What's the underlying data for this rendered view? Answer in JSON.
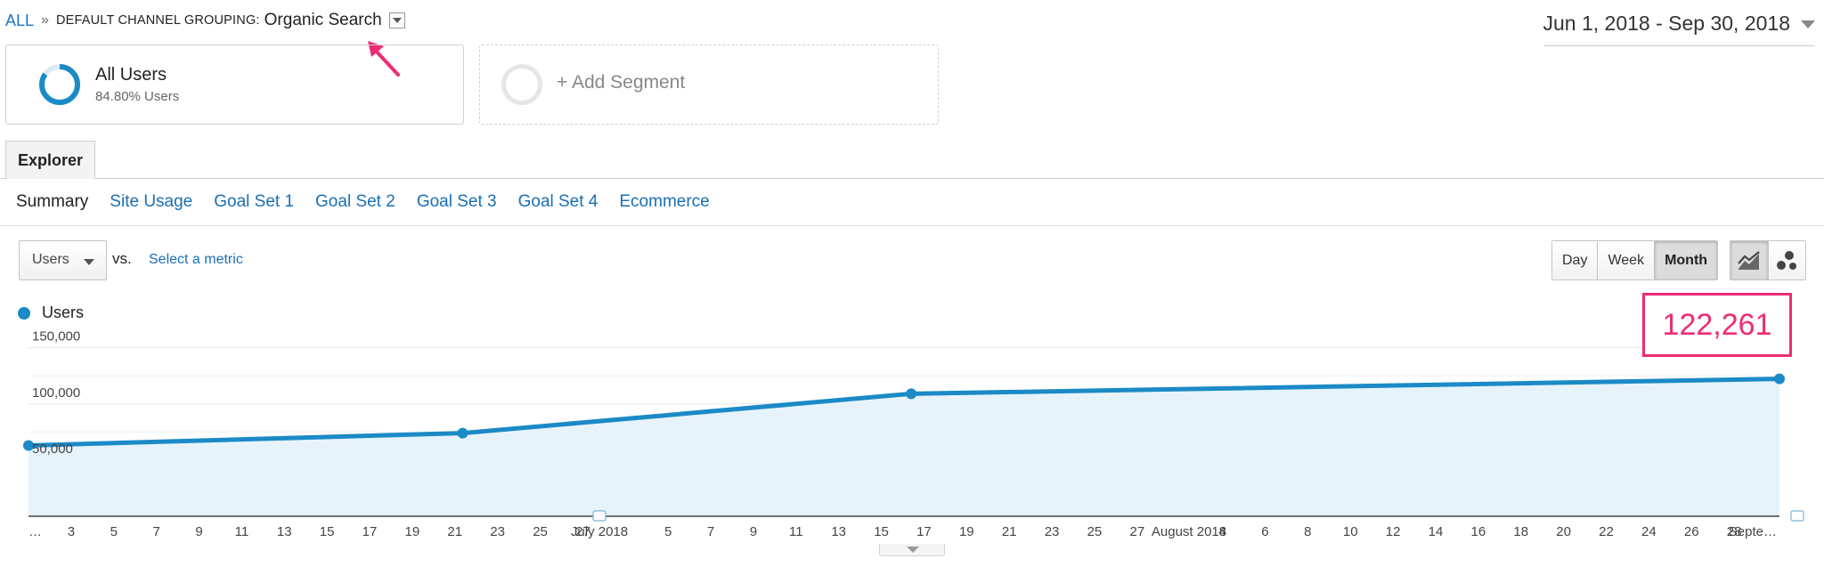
{
  "breadcrumb": {
    "root": "ALL",
    "separator": "»",
    "dimension": "DEFAULT CHANNEL GROUPING:",
    "value": "Organic Search",
    "dropdown_icon": "chevron-down-icon"
  },
  "date_range": "Jun 1, 2018 - Sep 30, 2018",
  "segments": {
    "active": {
      "name": "All Users",
      "subtitle": "84.80% Users",
      "percent": 84.8
    },
    "add_label": "+ Add Segment"
  },
  "tabs": {
    "explorer": "Explorer"
  },
  "subtabs": [
    "Summary",
    "Site Usage",
    "Goal Set 1",
    "Goal Set 2",
    "Goal Set 3",
    "Goal Set 4",
    "Ecommerce"
  ],
  "metric": {
    "selected": "Users",
    "vs": "vs.",
    "select_metric": "Select a metric"
  },
  "period_buttons": [
    "Day",
    "Week",
    "Month"
  ],
  "period_active": "Month",
  "chart_type_buttons": [
    "line-chart-icon",
    "motion-chart-icon"
  ],
  "highlight_value": "122,261",
  "colors": {
    "series": "#1b8ac6",
    "area": "#e7f3fb",
    "highlight": "#ee2c74",
    "link": "#1a6fb5"
  },
  "chart_data": {
    "type": "line",
    "series": [
      {
        "name": "Users",
        "x": [
          "2018-06-01",
          "2018-07-01",
          "2018-08-01",
          "2018-09-01"
        ],
        "values": [
          63000,
          74000,
          109000,
          122261
        ]
      }
    ],
    "ylim": [
      0,
      160000
    ],
    "yticks": [
      50000,
      100000,
      150000
    ],
    "ytick_labels": [
      "50,000",
      "100,000",
      "150,000"
    ],
    "xtick_labels": [
      "…",
      "3",
      "5",
      "7",
      "9",
      "11",
      "13",
      "15",
      "17",
      "19",
      "21",
      "23",
      "25",
      "27",
      "July 2018",
      "5",
      "7",
      "9",
      "11",
      "13",
      "15",
      "17",
      "19",
      "21",
      "23",
      "25",
      "27",
      "August 2018",
      "4",
      "6",
      "8",
      "10",
      "12",
      "14",
      "16",
      "18",
      "20",
      "22",
      "24",
      "26",
      "28",
      "Septe…"
    ],
    "grid": true,
    "legend": "top-left"
  }
}
